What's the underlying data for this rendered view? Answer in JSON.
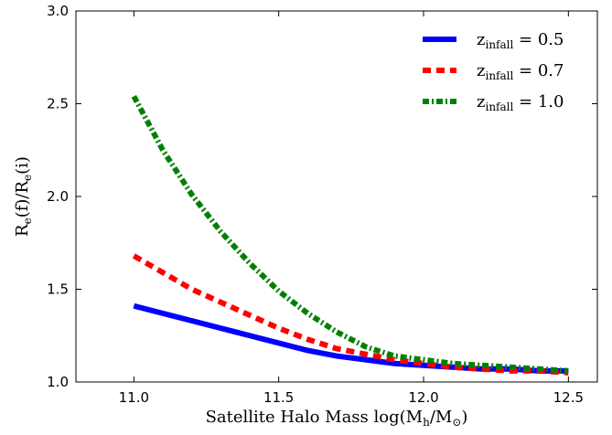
{
  "chart_data": {
    "type": "line",
    "xlabel": "Satellite Halo Mass log(M",
    "xlabel_sub": "h",
    "xlabel_mid": "/M",
    "xlabel_sub2": "⊙",
    "xlabel_end": ")",
    "ylabel_main": "R",
    "ylabel_sub": "e",
    "ylabel_mid": "(f)/R",
    "ylabel_sub2": "e",
    "ylabel_end": "(i)",
    "xlim": [
      10.8,
      12.6
    ],
    "ylim": [
      1.0,
      3.0
    ],
    "xticks": [
      "11.0",
      "11.5",
      "12.0",
      "12.5"
    ],
    "yticks": [
      "1.0",
      "1.5",
      "2.0",
      "2.5",
      "3.0"
    ],
    "legend_position": "top-right",
    "series": [
      {
        "name": "z",
        "name_sub": "infall",
        "name_tail": " = 0.5",
        "color": "#0000ff",
        "style": "solid",
        "x": [
          11.0,
          11.1,
          11.2,
          11.3,
          11.4,
          11.5,
          11.6,
          11.7,
          11.8,
          11.9,
          12.0,
          12.1,
          12.2,
          12.3,
          12.4,
          12.5
        ],
        "y": [
          1.41,
          1.37,
          1.33,
          1.29,
          1.25,
          1.21,
          1.17,
          1.14,
          1.12,
          1.1,
          1.09,
          1.08,
          1.07,
          1.07,
          1.06,
          1.06
        ]
      },
      {
        "name": "z",
        "name_sub": "infall",
        "name_tail": " = 0.7",
        "color": "#ff0000",
        "style": "dashed",
        "x": [
          11.0,
          11.1,
          11.2,
          11.3,
          11.4,
          11.5,
          11.6,
          11.7,
          11.8,
          11.9,
          12.0,
          12.1,
          12.2,
          12.3,
          12.4,
          12.5
        ],
        "y": [
          1.68,
          1.59,
          1.5,
          1.43,
          1.36,
          1.29,
          1.23,
          1.18,
          1.15,
          1.12,
          1.1,
          1.08,
          1.07,
          1.06,
          1.06,
          1.05
        ]
      },
      {
        "name": "z",
        "name_sub": "infall",
        "name_tail": " = 1.0",
        "color": "#008000",
        "style": "dashdot",
        "x": [
          11.0,
          11.1,
          11.2,
          11.3,
          11.4,
          11.5,
          11.6,
          11.7,
          11.8,
          11.9,
          12.0,
          12.1,
          12.2,
          12.3,
          12.4,
          12.5
        ],
        "y": [
          2.54,
          2.25,
          2.01,
          1.81,
          1.64,
          1.49,
          1.37,
          1.27,
          1.19,
          1.14,
          1.12,
          1.1,
          1.09,
          1.08,
          1.07,
          1.06
        ]
      }
    ]
  }
}
